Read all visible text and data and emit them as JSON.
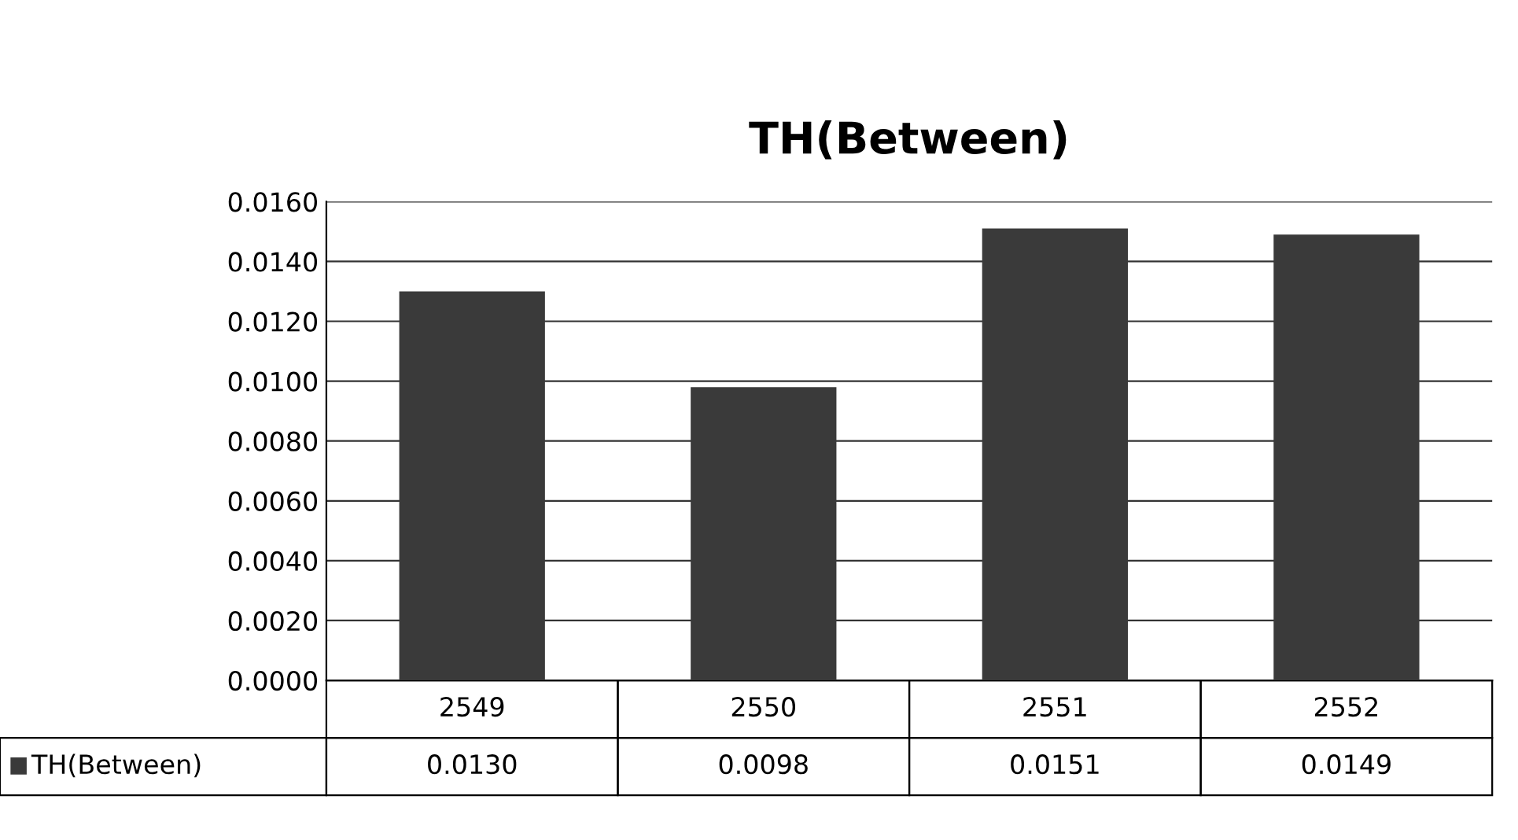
{
  "chart_data": {
    "type": "bar",
    "title": "TH(Between)",
    "categories": [
      "2549",
      "2550",
      "2551",
      "2552"
    ],
    "series": [
      {
        "name": "TH(Between)",
        "color": "#3a3a3a",
        "values": [
          0.013,
          0.0098,
          0.0151,
          0.0149
        ],
        "value_labels": [
          "0.0130",
          "0.0098",
          "0.0151",
          "0.0149"
        ]
      }
    ],
    "ylim": [
      0,
      0.016
    ],
    "yticks": [
      {
        "value": 0,
        "label": "0.0000"
      },
      {
        "value": 0.002,
        "label": "0.0020"
      },
      {
        "value": 0.004,
        "label": "0.0040"
      },
      {
        "value": 0.006,
        "label": "0.0060"
      },
      {
        "value": 0.008,
        "label": "0.0080"
      },
      {
        "value": 0.01,
        "label": "0.0100"
      },
      {
        "value": 0.012,
        "label": "0.0120"
      },
      {
        "value": 0.014,
        "label": "0.0140"
      },
      {
        "value": 0.016,
        "label": "0.0160"
      }
    ],
    "grid": "y",
    "legend": "bottom"
  }
}
